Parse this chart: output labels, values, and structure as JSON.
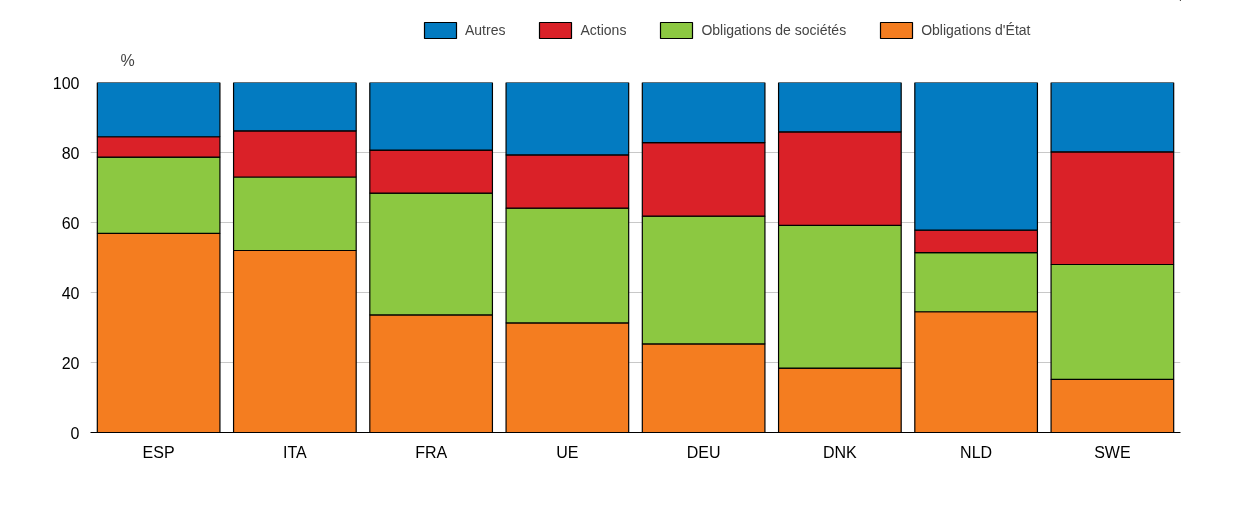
{
  "chart_data": {
    "type": "bar",
    "stacked": true,
    "ylabel": "%",
    "categories": [
      "ESP",
      "ITA",
      "FRA",
      "UE",
      "DEU",
      "DNK",
      "NLD",
      "SWE"
    ],
    "series": [
      {
        "name": "Obligations d'État",
        "color": "#f47d20",
        "values": [
          56.9,
          52.0,
          33.6,
          31.3,
          25.3,
          18.4,
          34.5,
          15.2
        ]
      },
      {
        "name": "Obligations de sociétés",
        "color": "#8cc841",
        "values": [
          21.8,
          21.0,
          34.8,
          32.8,
          36.5,
          40.8,
          16.9,
          32.8
        ]
      },
      {
        "name": "Actions",
        "color": "#da2128",
        "values": [
          5.8,
          13.2,
          12.3,
          15.2,
          21.0,
          26.7,
          6.4,
          32.2
        ]
      },
      {
        "name": "Autres",
        "color": "#037bc1",
        "values": [
          15.5,
          13.8,
          19.3,
          20.7,
          17.2,
          14.1,
          42.2,
          19.8
        ]
      }
    ],
    "ylim": [
      0,
      100
    ],
    "yticks": [
      0,
      20,
      40,
      60,
      80,
      100
    ],
    "grid": "y",
    "legend": "top"
  }
}
